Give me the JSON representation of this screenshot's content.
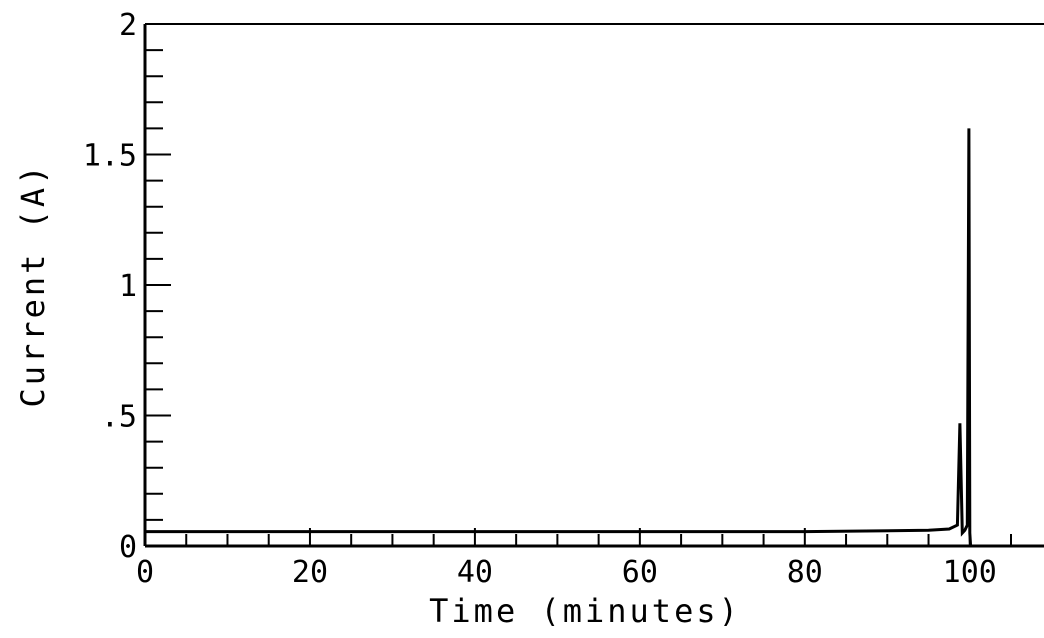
{
  "chart_data": {
    "type": "line",
    "title": "",
    "xlabel": "Time (minutes)",
    "ylabel": "Current (A)",
    "xlim": [
      0,
      109
    ],
    "ylim": [
      0,
      2
    ],
    "grid": false,
    "x_ticks": [
      0,
      20,
      40,
      60,
      80,
      100
    ],
    "x_tick_labels": [
      "0",
      "20",
      "40",
      "60",
      "80",
      "100"
    ],
    "y_ticks": [
      0,
      0.5,
      1,
      1.5,
      2
    ],
    "y_tick_labels": [
      "0",
      ".5",
      "1",
      "1.5",
      "2"
    ],
    "series": [
      {
        "x": [
          0,
          20,
          40,
          60,
          80,
          95,
          97.5,
          98.5,
          98.8,
          99.1,
          99.4,
          99.7,
          99.9,
          100.0,
          100.1
        ],
        "y": [
          0.055,
          0.055,
          0.055,
          0.055,
          0.055,
          0.06,
          0.065,
          0.08,
          0.47,
          0.05,
          0.06,
          0.08,
          1.6,
          0.05,
          0.0
        ]
      }
    ]
  }
}
